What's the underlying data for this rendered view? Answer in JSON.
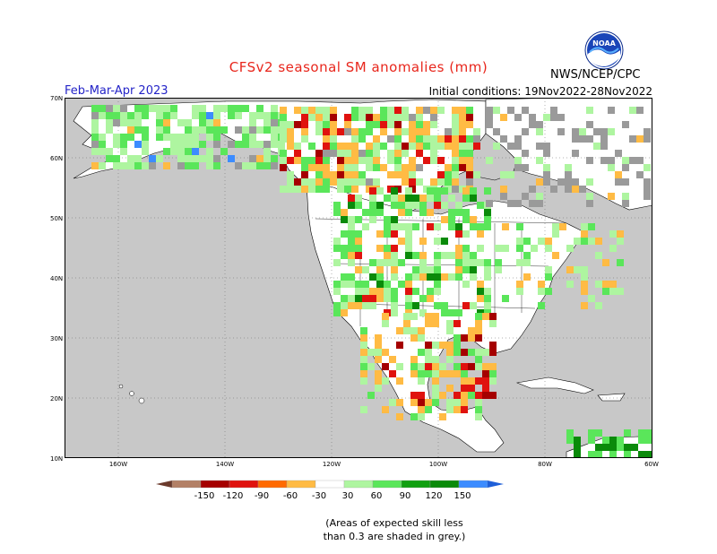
{
  "title": "CFSv2 seasonal SM anomalies (mm)",
  "period": "Feb-Mar-Apr 2023",
  "initial_conditions": "Initial conditions: 19Nov2022-28Nov2022",
  "agency": "NWS/NCEP/CPC",
  "logo_text": "NOAA",
  "lat_labels": [
    "70N",
    "60N",
    "50N",
    "40N",
    "30N",
    "20N",
    "10N"
  ],
  "lon_labels": [
    "160W",
    "140W",
    "120W",
    "100W",
    "80W",
    "60W"
  ],
  "colorbar": {
    "labels": [
      "-150",
      "-120",
      "-90",
      "-60",
      "-30",
      "30",
      "60",
      "90",
      "120",
      "150"
    ],
    "colors": [
      "#6b3a2c",
      "#b38066",
      "#a50000",
      "#e0120e",
      "#ff6a00",
      "#ffbb44",
      "#ffffff",
      "#aef5a0",
      "#5ae65a",
      "#10a010",
      "#0a8a0a",
      "#3c8cff",
      "#1e5fd8"
    ]
  },
  "note_line1": "(Areas of expected skill less",
  "note_line2": "than 0.3 are shaded in grey.)",
  "ocean_color": "#c8c8c8",
  "land_color": "#ffffff"
}
